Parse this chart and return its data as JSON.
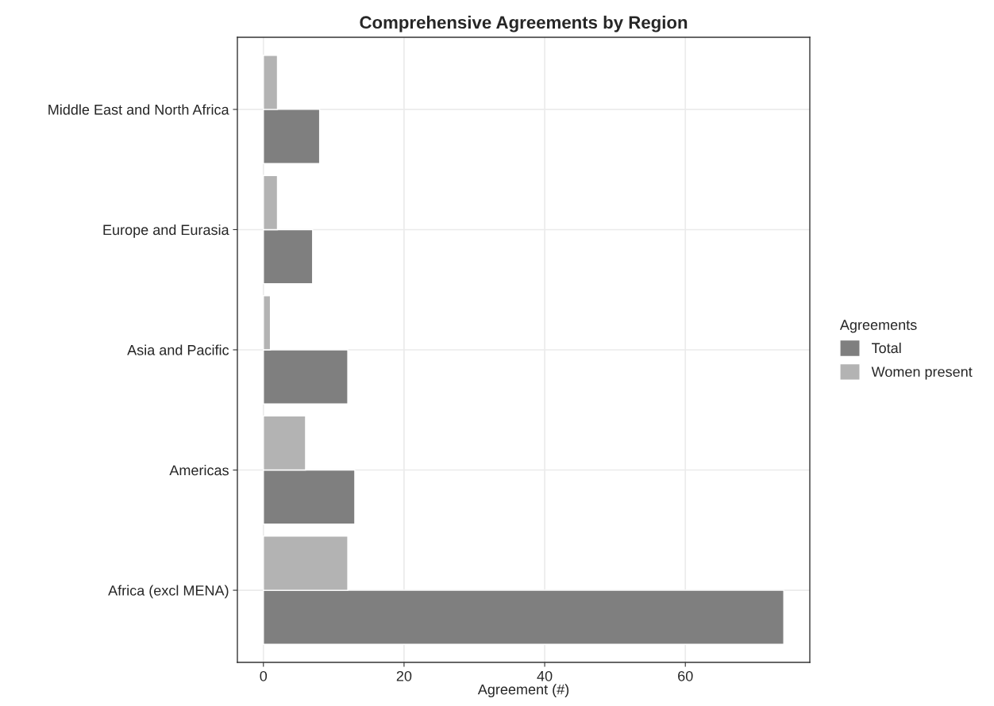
{
  "chart_data": {
    "type": "bar",
    "orientation": "horizontal",
    "title": "Comprehensive Agreements by Region",
    "xlabel": "Agreement (#)",
    "categories": [
      "Middle East and North Africa",
      "Europe and Eurasia",
      "Asia and Pacific",
      "Americas",
      "Africa (excl MENA)"
    ],
    "series": [
      {
        "name": "Total",
        "color": "#7f7f7f",
        "values": [
          8,
          7,
          12,
          13,
          74
        ]
      },
      {
        "name": "Women present",
        "color": "#b3b3b3",
        "values": [
          2,
          2,
          1,
          6,
          12
        ]
      }
    ],
    "xlim": [
      -3.7,
      77.7
    ],
    "xticks": [
      0,
      20,
      40,
      60
    ],
    "grid": true,
    "legend": "right",
    "legend_title": "Agreements"
  }
}
